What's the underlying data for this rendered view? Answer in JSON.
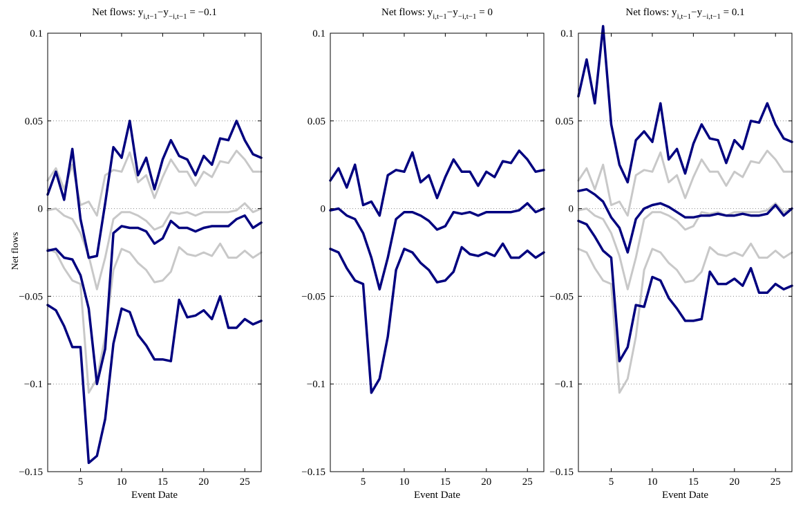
{
  "figure": {
    "ylabel": "Net flows",
    "xlabel": "Event Date"
  },
  "colors": {
    "band": "#00007f",
    "reference": "#c8c8c8",
    "grid": "#888888"
  },
  "chart_data": [
    {
      "type": "line",
      "title_prefix": "Net flows: y",
      "title_sub1": "i,t−1",
      "title_mid": "−y",
      "title_sub2": "−i,t−1",
      "title_suffix": " = −0.1",
      "xlabel": "Event Date",
      "ylabel": "Net flows",
      "xlim": [
        1,
        27
      ],
      "ylim": [
        -0.15,
        0.1
      ],
      "xticks": [
        5,
        10,
        15,
        20,
        25
      ],
      "yticks": [
        -0.15,
        -0.1,
        -0.05,
        0,
        0.05,
        0.1
      ],
      "ytick_labels": [
        "−0.15",
        "−0.1",
        "−0.05",
        "0",
        "0.05",
        "0.1"
      ],
      "grid": "y-dotted",
      "x": [
        1,
        2,
        3,
        4,
        5,
        6,
        7,
        8,
        9,
        10,
        11,
        12,
        13,
        14,
        15,
        16,
        17,
        18,
        19,
        20,
        21,
        22,
        23,
        24,
        25,
        26,
        27
      ],
      "reference_series": [
        {
          "values": [
            0.016,
            0.023,
            0.011,
            0.025,
            0.002,
            0.004,
            -0.004,
            0.019,
            0.022,
            0.021,
            0.032,
            0.015,
            0.019,
            0.006,
            0.018,
            0.028,
            0.021,
            0.021,
            0.013,
            0.021,
            0.018,
            0.027,
            0.026,
            0.033,
            0.028,
            0.021,
            0.021
          ]
        },
        {
          "values": [
            -0.001,
            0.0,
            -0.004,
            -0.006,
            -0.014,
            -0.027,
            -0.046,
            -0.028,
            -0.006,
            -0.002,
            -0.002,
            -0.004,
            -0.007,
            -0.012,
            -0.01,
            -0.002,
            -0.003,
            -0.002,
            -0.004,
            -0.002,
            -0.002,
            -0.002,
            -0.002,
            -0.001,
            0.003,
            -0.002,
            0.0
          ]
        },
        {
          "values": [
            -0.023,
            -0.025,
            -0.034,
            -0.041,
            -0.043,
            -0.105,
            -0.097,
            -0.073,
            -0.035,
            -0.023,
            -0.025,
            -0.031,
            -0.035,
            -0.042,
            -0.041,
            -0.036,
            -0.022,
            -0.026,
            -0.027,
            -0.025,
            -0.027,
            -0.02,
            -0.028,
            -0.028,
            -0.024,
            -0.028,
            -0.025
          ]
        }
      ],
      "series": [
        {
          "values": [
            0.008,
            0.021,
            0.005,
            0.034,
            -0.006,
            -0.028,
            -0.027,
            0.003,
            0.035,
            0.029,
            0.05,
            0.019,
            0.029,
            0.011,
            0.028,
            0.039,
            0.03,
            0.028,
            0.019,
            0.03,
            0.025,
            0.04,
            0.039,
            0.05,
            0.039,
            0.031,
            0.029
          ]
        },
        {
          "values": [
            -0.024,
            -0.023,
            -0.028,
            -0.029,
            -0.038,
            -0.057,
            -0.1,
            -0.08,
            -0.014,
            -0.01,
            -0.011,
            -0.011,
            -0.013,
            -0.02,
            -0.017,
            -0.007,
            -0.011,
            -0.011,
            -0.013,
            -0.011,
            -0.01,
            -0.01,
            -0.01,
            -0.006,
            -0.004,
            -0.011,
            -0.008
          ]
        },
        {
          "values": [
            -0.055,
            -0.058,
            -0.067,
            -0.079,
            -0.079,
            -0.145,
            -0.141,
            -0.12,
            -0.077,
            -0.057,
            -0.059,
            -0.072,
            -0.078,
            -0.086,
            -0.086,
            -0.087,
            -0.052,
            -0.062,
            -0.061,
            -0.058,
            -0.063,
            -0.05,
            -0.068,
            -0.068,
            -0.063,
            -0.066,
            -0.064
          ]
        }
      ]
    },
    {
      "type": "line",
      "title_prefix": "Net flows: y",
      "title_sub1": "i,t−1",
      "title_mid": "−y",
      "title_sub2": "−i,t−1",
      "title_suffix": " = 0",
      "xlabel": "Event Date",
      "xlim": [
        1,
        27
      ],
      "ylim": [
        -0.15,
        0.1
      ],
      "xticks": [
        5,
        10,
        15,
        20,
        25
      ],
      "yticks": [
        -0.15,
        -0.1,
        -0.05,
        0,
        0.05,
        0.1
      ],
      "ytick_labels": [
        "−0.15",
        "−0.1",
        "−0.05",
        "0",
        "0.05",
        "0.1"
      ],
      "grid": "y-dotted",
      "x": [
        1,
        2,
        3,
        4,
        5,
        6,
        7,
        8,
        9,
        10,
        11,
        12,
        13,
        14,
        15,
        16,
        17,
        18,
        19,
        20,
        21,
        22,
        23,
        24,
        25,
        26,
        27
      ],
      "reference_series": [],
      "series": [
        {
          "values": [
            0.016,
            0.023,
            0.012,
            0.025,
            0.002,
            0.004,
            -0.004,
            0.019,
            0.022,
            0.021,
            0.032,
            0.015,
            0.019,
            0.006,
            0.018,
            0.028,
            0.021,
            0.021,
            0.013,
            0.021,
            0.018,
            0.027,
            0.026,
            0.033,
            0.028,
            0.021,
            0.022
          ]
        },
        {
          "values": [
            -0.001,
            0.0,
            -0.004,
            -0.006,
            -0.014,
            -0.028,
            -0.046,
            -0.028,
            -0.006,
            -0.002,
            -0.002,
            -0.004,
            -0.007,
            -0.012,
            -0.01,
            -0.002,
            -0.003,
            -0.002,
            -0.004,
            -0.002,
            -0.002,
            -0.002,
            -0.002,
            -0.001,
            0.003,
            -0.002,
            0.0
          ]
        },
        {
          "values": [
            -0.023,
            -0.025,
            -0.034,
            -0.041,
            -0.043,
            -0.105,
            -0.097,
            -0.073,
            -0.035,
            -0.023,
            -0.025,
            -0.031,
            -0.035,
            -0.042,
            -0.041,
            -0.036,
            -0.022,
            -0.026,
            -0.027,
            -0.025,
            -0.027,
            -0.02,
            -0.028,
            -0.028,
            -0.024,
            -0.028,
            -0.025
          ]
        }
      ]
    },
    {
      "type": "line",
      "title_prefix": "Net flows: y",
      "title_sub1": "i,t−1",
      "title_mid": "−y",
      "title_sub2": "−i,t−1",
      "title_suffix": " = 0.1",
      "xlabel": "Event Date",
      "xlim": [
        1,
        27
      ],
      "ylim": [
        -0.15,
        0.1
      ],
      "xticks": [
        5,
        10,
        15,
        20,
        25
      ],
      "yticks": [
        -0.15,
        -0.1,
        -0.05,
        0,
        0.05,
        0.1
      ],
      "ytick_labels": [
        "−0.15",
        "−0.1",
        "−0.05",
        "0",
        "0.05",
        "0.1"
      ],
      "grid": "y-dotted",
      "x": [
        1,
        2,
        3,
        4,
        5,
        6,
        7,
        8,
        9,
        10,
        11,
        12,
        13,
        14,
        15,
        16,
        17,
        18,
        19,
        20,
        21,
        22,
        23,
        24,
        25,
        26,
        27
      ],
      "reference_series": [
        {
          "values": [
            0.016,
            0.023,
            0.011,
            0.025,
            0.002,
            0.004,
            -0.004,
            0.019,
            0.022,
            0.021,
            0.032,
            0.015,
            0.019,
            0.006,
            0.018,
            0.028,
            0.021,
            0.021,
            0.013,
            0.021,
            0.018,
            0.027,
            0.026,
            0.033,
            0.028,
            0.021,
            0.021
          ]
        },
        {
          "values": [
            -0.001,
            0.0,
            -0.004,
            -0.006,
            -0.014,
            -0.027,
            -0.046,
            -0.028,
            -0.006,
            -0.002,
            -0.002,
            -0.004,
            -0.007,
            -0.012,
            -0.01,
            -0.002,
            -0.003,
            -0.002,
            -0.004,
            -0.002,
            -0.002,
            -0.002,
            -0.002,
            -0.001,
            0.003,
            -0.002,
            0.0
          ]
        },
        {
          "values": [
            -0.023,
            -0.025,
            -0.034,
            -0.041,
            -0.043,
            -0.105,
            -0.097,
            -0.073,
            -0.035,
            -0.023,
            -0.025,
            -0.031,
            -0.035,
            -0.042,
            -0.041,
            -0.036,
            -0.022,
            -0.026,
            -0.027,
            -0.025,
            -0.027,
            -0.02,
            -0.028,
            -0.028,
            -0.024,
            -0.028,
            -0.025
          ]
        }
      ],
      "series": [
        {
          "values": [
            0.064,
            0.085,
            0.06,
            0.104,
            0.048,
            0.025,
            0.015,
            0.039,
            0.044,
            0.038,
            0.06,
            0.028,
            0.034,
            0.02,
            0.037,
            0.048,
            0.04,
            0.039,
            0.026,
            0.039,
            0.034,
            0.05,
            0.049,
            0.06,
            0.048,
            0.04,
            0.038
          ]
        },
        {
          "values": [
            0.01,
            0.011,
            0.008,
            0.004,
            -0.005,
            -0.011,
            -0.025,
            -0.006,
            0.0,
            0.002,
            0.003,
            0.001,
            -0.002,
            -0.005,
            -0.005,
            -0.004,
            -0.004,
            -0.003,
            -0.004,
            -0.004,
            -0.003,
            -0.004,
            -0.004,
            -0.003,
            0.002,
            -0.004,
            0.0
          ]
        },
        {
          "values": [
            -0.007,
            -0.009,
            -0.016,
            -0.024,
            -0.028,
            -0.087,
            -0.079,
            -0.055,
            -0.056,
            -0.039,
            -0.041,
            -0.051,
            -0.057,
            -0.064,
            -0.064,
            -0.063,
            -0.036,
            -0.043,
            -0.043,
            -0.04,
            -0.044,
            -0.034,
            -0.048,
            -0.048,
            -0.043,
            -0.046,
            -0.044
          ]
        }
      ]
    }
  ]
}
